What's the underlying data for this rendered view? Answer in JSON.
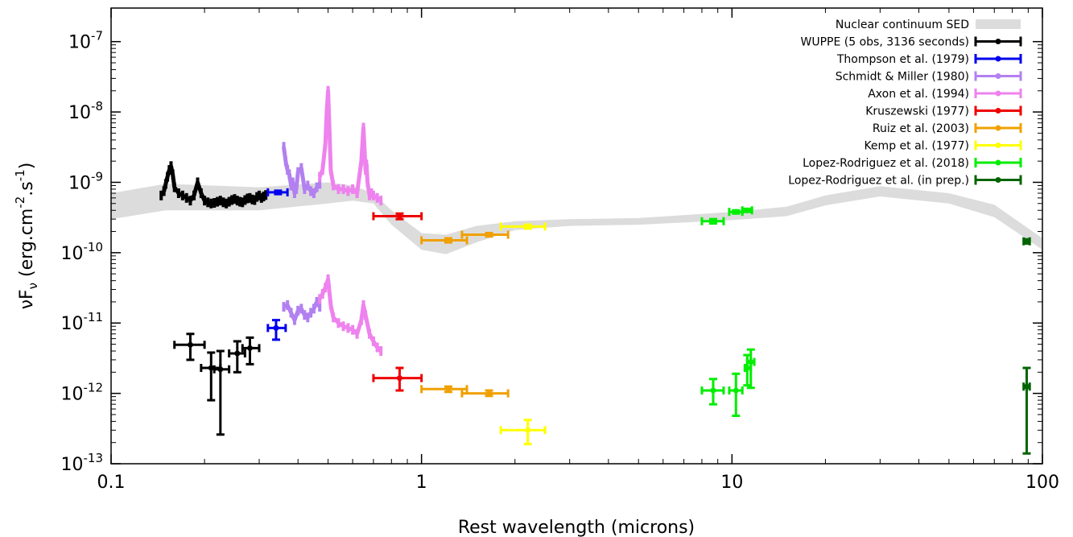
{
  "chart_data": {
    "type": "scatter",
    "xscale": "log",
    "yscale": "log",
    "xlim": [
      0.1,
      100
    ],
    "ylim": [
      1e-13,
      3e-07
    ],
    "xlabel": "Rest wavelength (microns)",
    "ylabel": "νF_ν (erg.cm⁻².s⁻¹)",
    "ylabel_parts": {
      "main": "νF",
      "sub": "ν",
      "rest": " (erg.cm",
      "sup1": "-2",
      "mid": ".s",
      "sup2": "-1",
      "end": ")"
    },
    "xticks": [
      {
        "value": 0.1,
        "label": "0.1"
      },
      {
        "value": 1,
        "label": "1"
      },
      {
        "value": 10,
        "label": "10"
      },
      {
        "value": 100,
        "label": "100"
      }
    ],
    "yticks": [
      {
        "value": 1e-13,
        "exp": "-13"
      },
      {
        "value": 1e-12,
        "exp": "-12"
      },
      {
        "value": 1e-11,
        "exp": "-11"
      },
      {
        "value": 1e-10,
        "exp": "-10"
      },
      {
        "value": 1e-09,
        "exp": "-9"
      },
      {
        "value": 1e-08,
        "exp": "-8"
      },
      {
        "value": 1e-07,
        "exp": "-7"
      }
    ],
    "ytick_base": "10",
    "grid": false,
    "legend_position": "top-right",
    "sed_band": {
      "name": "Nuclear continuum SED",
      "color": "#dcdcdc",
      "x": [
        0.1,
        0.15,
        0.3,
        0.5,
        0.6,
        0.7,
        0.8,
        1.0,
        1.2,
        1.5,
        2.0,
        3.0,
        5.0,
        10.0,
        15.0,
        20.0,
        30.0,
        50.0,
        70.0,
        100.0
      ],
      "upper": [
        7e-10,
        9.5e-10,
        8.5e-10,
        1e-09,
        9e-10,
        7e-10,
        4e-10,
        1.9e-10,
        1.8e-10,
        2.4e-10,
        2.8e-10,
        3e-10,
        3.1e-10,
        3.8e-10,
        4.5e-10,
        6.5e-10,
        8.8e-10,
        7e-10,
        4.8e-10,
        1.6e-10
      ],
      "lower": [
        3e-10,
        4e-10,
        4e-10,
        5e-10,
        5.5e-10,
        5e-10,
        2.5e-10,
        1.1e-10,
        9.5e-11,
        1.4e-10,
        2.1e-10,
        2.4e-10,
        2.5e-10,
        2.9e-10,
        3.3e-10,
        4.7e-10,
        6.3e-10,
        5e-10,
        3.2e-10,
        1.1e-10
      ]
    },
    "series": [
      {
        "name": "WUPPE (5 obs, 3136 seconds)",
        "color": "#000000",
        "flux_spectrum": {
          "x": [
            0.145,
            0.148,
            0.15,
            0.152,
            0.154,
            0.156,
            0.158,
            0.16,
            0.165,
            0.17,
            0.175,
            0.18,
            0.185,
            0.19,
            0.195,
            0.2,
            0.205,
            0.21,
            0.215,
            0.22,
            0.225,
            0.23,
            0.235,
            0.24,
            0.245,
            0.25,
            0.255,
            0.26,
            0.265,
            0.27,
            0.275,
            0.28,
            0.285,
            0.29,
            0.295,
            0.3,
            0.305,
            0.31,
            0.315
          ],
          "y": [
            6.5e-10,
            7.5e-10,
            9.5e-10,
            1.2e-09,
            1.5e-09,
            1.7e-09,
            1.3e-09,
            8.5e-10,
            7e-10,
            6.5e-10,
            6e-10,
            5.5e-10,
            6.5e-10,
            1e-09,
            7e-10,
            5.5e-10,
            5.2e-10,
            5e-10,
            5.1e-10,
            5.3e-10,
            5.5e-10,
            5.2e-10,
            5e-10,
            5.3e-10,
            5.6e-10,
            5.8e-10,
            5.5e-10,
            5.3e-10,
            5.2e-10,
            5.6e-10,
            5.9e-10,
            6e-10,
            5.7e-10,
            5.6e-10,
            6.2e-10,
            6.5e-10,
            6e-10,
            6.3e-10,
            6.6e-10
          ]
        },
        "polarized_points": [
          {
            "x": 0.18,
            "y": 4.9e-12,
            "xlo": 0.16,
            "xhi": 0.2,
            "ylo": 3e-12,
            "yhi": 7e-12
          },
          {
            "x": 0.21,
            "y": 2.3e-12,
            "xlo": 0.195,
            "xhi": 0.225,
            "ylo": 8e-13,
            "yhi": 3.8e-12
          },
          {
            "x": 0.225,
            "y": 2.2e-12,
            "xlo": 0.215,
            "xhi": 0.24,
            "ylo": 2.6e-13,
            "yhi": 4e-12
          },
          {
            "x": 0.255,
            "y": 3.7e-12,
            "xlo": 0.24,
            "xhi": 0.27,
            "ylo": 2e-12,
            "yhi": 5.5e-12
          },
          {
            "x": 0.28,
            "y": 4.4e-12,
            "xlo": 0.265,
            "xhi": 0.3,
            "ylo": 2.6e-12,
            "yhi": 6.2e-12
          }
        ]
      },
      {
        "name": "Thompson et al. (1979)",
        "color": "#0000ee",
        "points": [
          {
            "x": 0.345,
            "y": 7.2e-10,
            "xlo": 0.32,
            "xhi": 0.37,
            "ylo": 6.8e-10,
            "yhi": 7.6e-10
          }
        ],
        "polarized_points": [
          {
            "x": 0.34,
            "y": 8.5e-12,
            "xlo": 0.32,
            "xhi": 0.365,
            "ylo": 5.8e-12,
            "yhi": 1.1e-11
          }
        ]
      },
      {
        "name": "Schmidt & Miller (1980)",
        "color": "#b380f0",
        "flux_spectrum": {
          "x": [
            0.36,
            0.365,
            0.37,
            0.375,
            0.38,
            0.385,
            0.39,
            0.395,
            0.4,
            0.41,
            0.42,
            0.43,
            0.44,
            0.45,
            0.46,
            0.47
          ],
          "y": [
            3.2e-09,
            2e-09,
            1.5e-09,
            1.3e-09,
            9e-10,
            1e-09,
            7e-10,
            8e-10,
            1.4e-09,
            1.6e-09,
            8e-10,
            9e-10,
            7.5e-10,
            7e-10,
            8.5e-10,
            9.5e-10
          ]
        },
        "polarized_spectrum": {
          "x": [
            0.36,
            0.37,
            0.38,
            0.39,
            0.4,
            0.41,
            0.42,
            0.43,
            0.44,
            0.45,
            0.46,
            0.47
          ],
          "y": [
            1.7e-11,
            1.8e-11,
            1.4e-11,
            1.1e-11,
            1.5e-11,
            1.6e-11,
            1.3e-11,
            1.2e-11,
            1.4e-11,
            1.6e-11,
            2e-11,
            1.7e-11
          ]
        }
      },
      {
        "name": "Axon et al. (1994)",
        "color": "#ee82ee",
        "flux_spectrum": {
          "x": [
            0.47,
            0.48,
            0.49,
            0.495,
            0.5,
            0.505,
            0.51,
            0.52,
            0.54,
            0.56,
            0.58,
            0.6,
            0.62,
            0.64,
            0.65,
            0.655,
            0.66,
            0.665,
            0.67,
            0.68,
            0.69,
            0.7,
            0.72,
            0.74
          ],
          "y": [
            1.2e-09,
            1.5e-09,
            3.5e-09,
            1e-08,
            2e-08,
            6e-09,
            1.5e-09,
            9e-10,
            8e-10,
            8e-10,
            7.5e-10,
            8e-10,
            7e-10,
            2e-09,
            6e-09,
            3e-09,
            1.5e-09,
            1.8e-09,
            1e-09,
            6.5e-10,
            7e-10,
            6.5e-10,
            6e-10,
            5.5e-10
          ]
        },
        "polarized_spectrum": {
          "x": [
            0.47,
            0.48,
            0.49,
            0.5,
            0.51,
            0.52,
            0.54,
            0.56,
            0.58,
            0.6,
            0.62,
            0.64,
            0.65,
            0.66,
            0.68,
            0.7,
            0.72,
            0.74
          ],
          "y": [
            2.2e-11,
            2.6e-11,
            3.2e-11,
            4.2e-11,
            1.8e-11,
            1.2e-11,
            1e-11,
            9e-12,
            8.5e-12,
            8e-12,
            7e-12,
            1.1e-11,
            1.8e-11,
            1.3e-11,
            7e-12,
            5.5e-12,
            4.5e-12,
            4e-12
          ]
        }
      },
      {
        "name": "Kruszewski (1977)",
        "color": "#ee0000",
        "points": [
          {
            "x": 0.85,
            "y": 3.3e-10,
            "xlo": 0.7,
            "xhi": 1.0,
            "ylo": 3e-10,
            "yhi": 3.6e-10
          }
        ],
        "polarized_points": [
          {
            "x": 0.85,
            "y": 1.65e-12,
            "xlo": 0.7,
            "xhi": 1.0,
            "ylo": 1.1e-12,
            "yhi": 2.3e-12
          }
        ]
      },
      {
        "name": "Ruiz et al. (2003)",
        "color": "#f0a000",
        "points": [
          {
            "x": 1.22,
            "y": 1.5e-10,
            "xlo": 1.0,
            "xhi": 1.4,
            "ylo": 1.4e-10,
            "yhi": 1.6e-10
          },
          {
            "x": 1.65,
            "y": 1.8e-10,
            "xlo": 1.35,
            "xhi": 1.9,
            "ylo": 1.7e-10,
            "yhi": 1.9e-10
          }
        ],
        "polarized_points": [
          {
            "x": 1.22,
            "y": 1.15e-12,
            "xlo": 1.0,
            "xhi": 1.4,
            "ylo": 1.05e-12,
            "yhi": 1.25e-12
          },
          {
            "x": 1.65,
            "y": 1e-12,
            "xlo": 1.35,
            "xhi": 1.9,
            "ylo": 9.2e-13,
            "yhi": 1.1e-12
          }
        ]
      },
      {
        "name": "Kemp et al. (1977)",
        "color": "#ffff00",
        "points": [
          {
            "x": 2.2,
            "y": 2.35e-10,
            "xlo": 1.8,
            "xhi": 2.5,
            "ylo": 2.2e-10,
            "yhi": 2.5e-10
          }
        ],
        "polarized_points": [
          {
            "x": 2.2,
            "y": 3e-13,
            "xlo": 1.8,
            "xhi": 2.5,
            "ylo": 1.9e-13,
            "yhi": 4.2e-13
          }
        ]
      },
      {
        "name": "Lopez-Rodriguez et al. (2018)",
        "color": "#00ee00",
        "points": [
          {
            "x": 8.7,
            "y": 2.8e-10,
            "xlo": 8.0,
            "xhi": 9.4,
            "ylo": 2.6e-10,
            "yhi": 3e-10
          },
          {
            "x": 10.3,
            "y": 3.8e-10,
            "xlo": 9.8,
            "xhi": 10.8,
            "ylo": 3.6e-10,
            "yhi": 4e-10
          },
          {
            "x": 11.2,
            "y": 4e-10,
            "xlo": 10.8,
            "xhi": 11.6,
            "ylo": 3.8e-10,
            "yhi": 4.2e-10
          }
        ],
        "polarized_points": [
          {
            "x": 8.7,
            "y": 1.1e-12,
            "xlo": 8.0,
            "xhi": 9.4,
            "ylo": 7e-13,
            "yhi": 1.6e-12
          },
          {
            "x": 10.3,
            "y": 1.1e-12,
            "xlo": 9.8,
            "xhi": 10.8,
            "ylo": 4.8e-13,
            "yhi": 1.9e-12
          },
          {
            "x": 11.2,
            "y": 2.3e-12,
            "xlo": 11.0,
            "xhi": 11.5,
            "ylo": 1.3e-12,
            "yhi": 3.5e-12
          },
          {
            "x": 11.5,
            "y": 2.8e-12,
            "xlo": 11.2,
            "xhi": 11.8,
            "ylo": 1.2e-12,
            "yhi": 4.2e-12
          }
        ]
      },
      {
        "name": "Lopez-Rodriguez et al. (in prep.)",
        "color": "#006400",
        "points": [
          {
            "x": 89,
            "y": 1.45e-10,
            "xlo": 87,
            "xhi": 91,
            "ylo": 1.35e-10,
            "yhi": 1.55e-10
          }
        ],
        "polarized_points": [
          {
            "x": 89,
            "y": 1.25e-12,
            "xlo": 87,
            "xhi": 91,
            "ylo": 1.4e-13,
            "yhi": 2.3e-12
          }
        ]
      }
    ]
  }
}
